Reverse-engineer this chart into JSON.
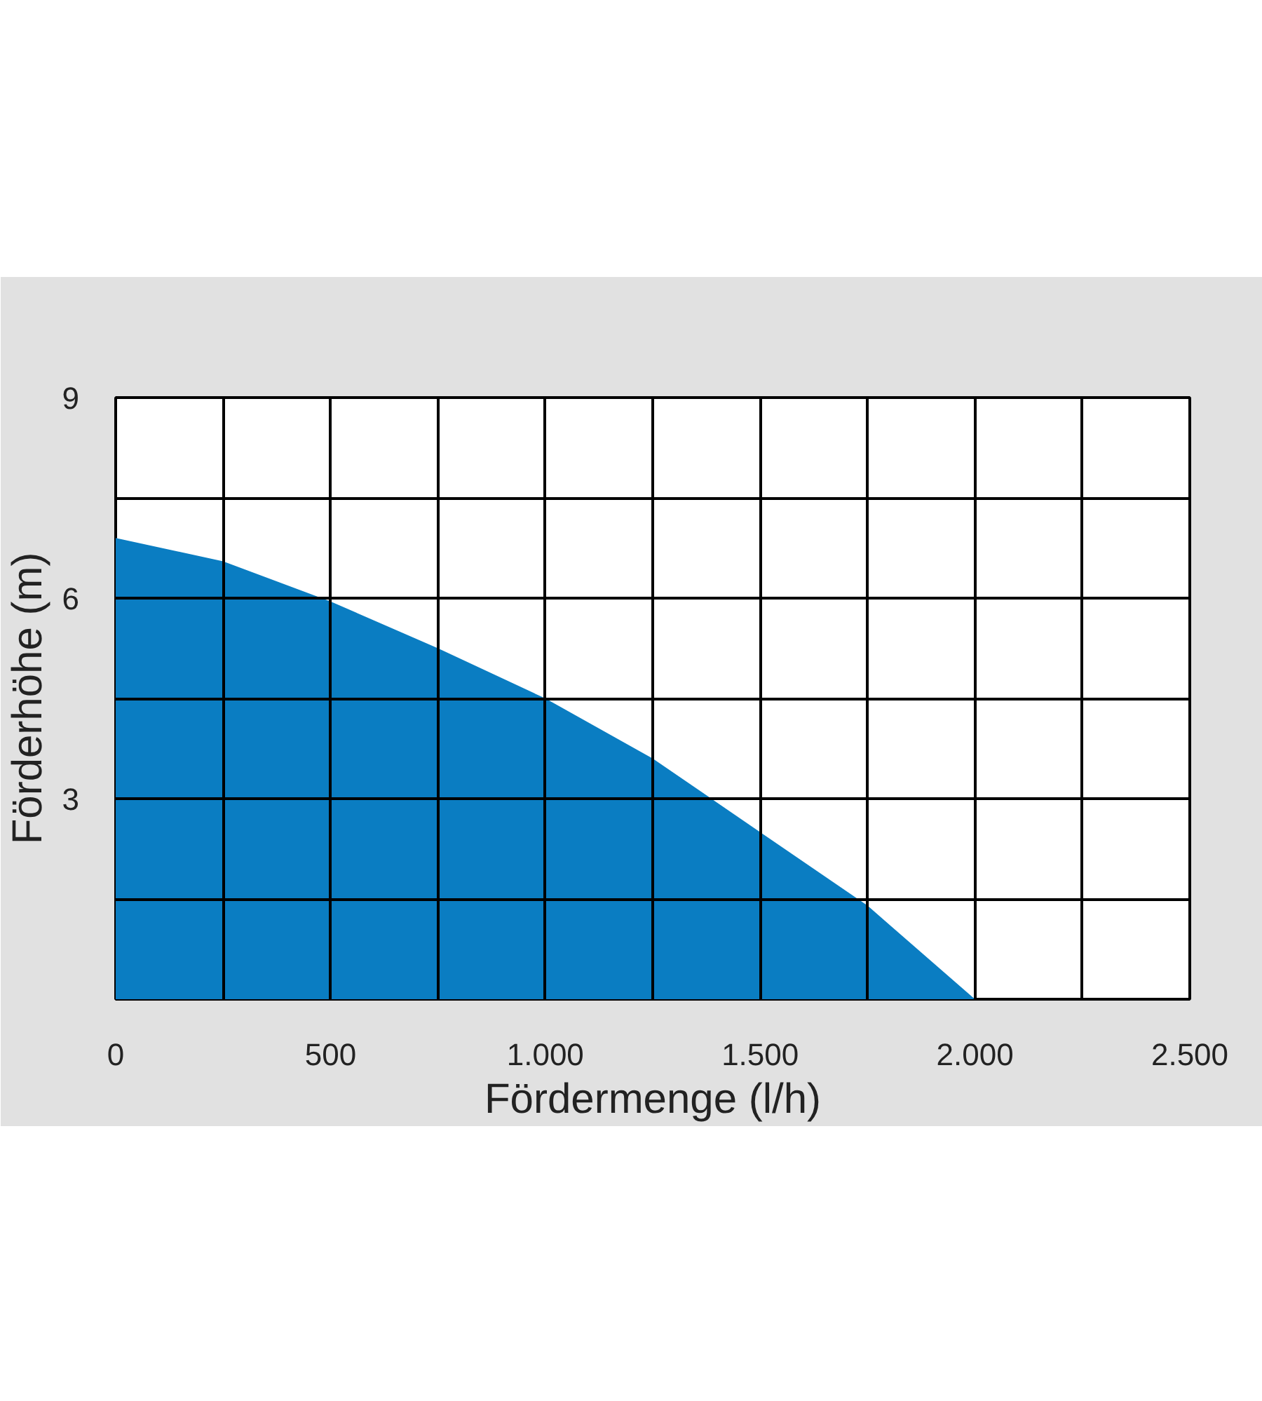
{
  "chart_data": {
    "type": "area",
    "xlabel": "Fördermenge (l/h)",
    "ylabel": "Förderhöhe (m)",
    "x": [
      0,
      250,
      500,
      750,
      1000,
      1250,
      1500,
      1750,
      2000
    ],
    "series": [
      {
        "color": "#0a7dc2",
        "values": [
          6.9,
          6.55,
          5.95,
          5.25,
          4.5,
          3.6,
          2.5,
          1.4,
          0
        ]
      }
    ],
    "xlim": [
      0,
      2500
    ],
    "ylim": [
      0,
      9
    ],
    "xticks": [
      0,
      {
        "value": 250,
        "label": null
      },
      500,
      {
        "value": 750,
        "label": null
      },
      "1.000",
      {
        "value": 1250,
        "label": null
      },
      "1.500",
      {
        "value": 1750,
        "label": null
      },
      "2.000",
      {
        "value": 2250,
        "label": null
      },
      "2.500"
    ],
    "yticks": [
      {
        "value": 1.5,
        "label": null
      },
      3,
      {
        "value": 4.5,
        "label": null
      },
      6,
      {
        "value": 7.5,
        "label": null
      },
      9
    ],
    "grid": true
  }
}
